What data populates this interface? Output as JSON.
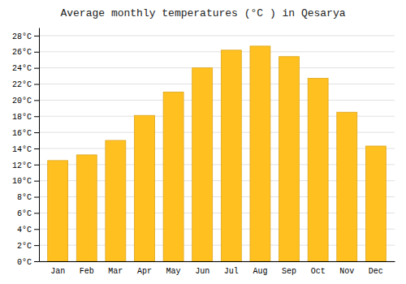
{
  "chart_data": {
    "type": "bar",
    "title": "Average monthly temperatures (°C ) in Qesarya",
    "categories": [
      "Jan",
      "Feb",
      "Mar",
      "Apr",
      "May",
      "Jun",
      "Jul",
      "Aug",
      "Sep",
      "Oct",
      "Nov",
      "Dec"
    ],
    "values": [
      12.5,
      13.2,
      15.0,
      18.1,
      21.0,
      24.0,
      26.2,
      26.7,
      25.4,
      22.7,
      18.5,
      14.3
    ],
    "color": "#FFC020",
    "ylim": [
      0,
      29
    ],
    "yticks": [
      {
        "value": 0,
        "label": "0°C"
      },
      {
        "value": 2,
        "label": "2°C"
      },
      {
        "value": 4,
        "label": "4°C"
      },
      {
        "value": 6,
        "label": "6°C"
      },
      {
        "value": 8,
        "label": "8°C"
      },
      {
        "value": 10,
        "label": "10°C"
      },
      {
        "value": 12,
        "label": "12°C"
      },
      {
        "value": 14,
        "label": "14°C"
      },
      {
        "value": 16,
        "label": "16°C"
      },
      {
        "value": 18,
        "label": "18°C"
      },
      {
        "value": 20,
        "label": "20°C"
      },
      {
        "value": 22,
        "label": "22°C"
      },
      {
        "value": 24,
        "label": "24°C"
      },
      {
        "value": 26,
        "label": "26°C"
      },
      {
        "value": 28,
        "label": "28°C"
      }
    ],
    "grid": true
  }
}
